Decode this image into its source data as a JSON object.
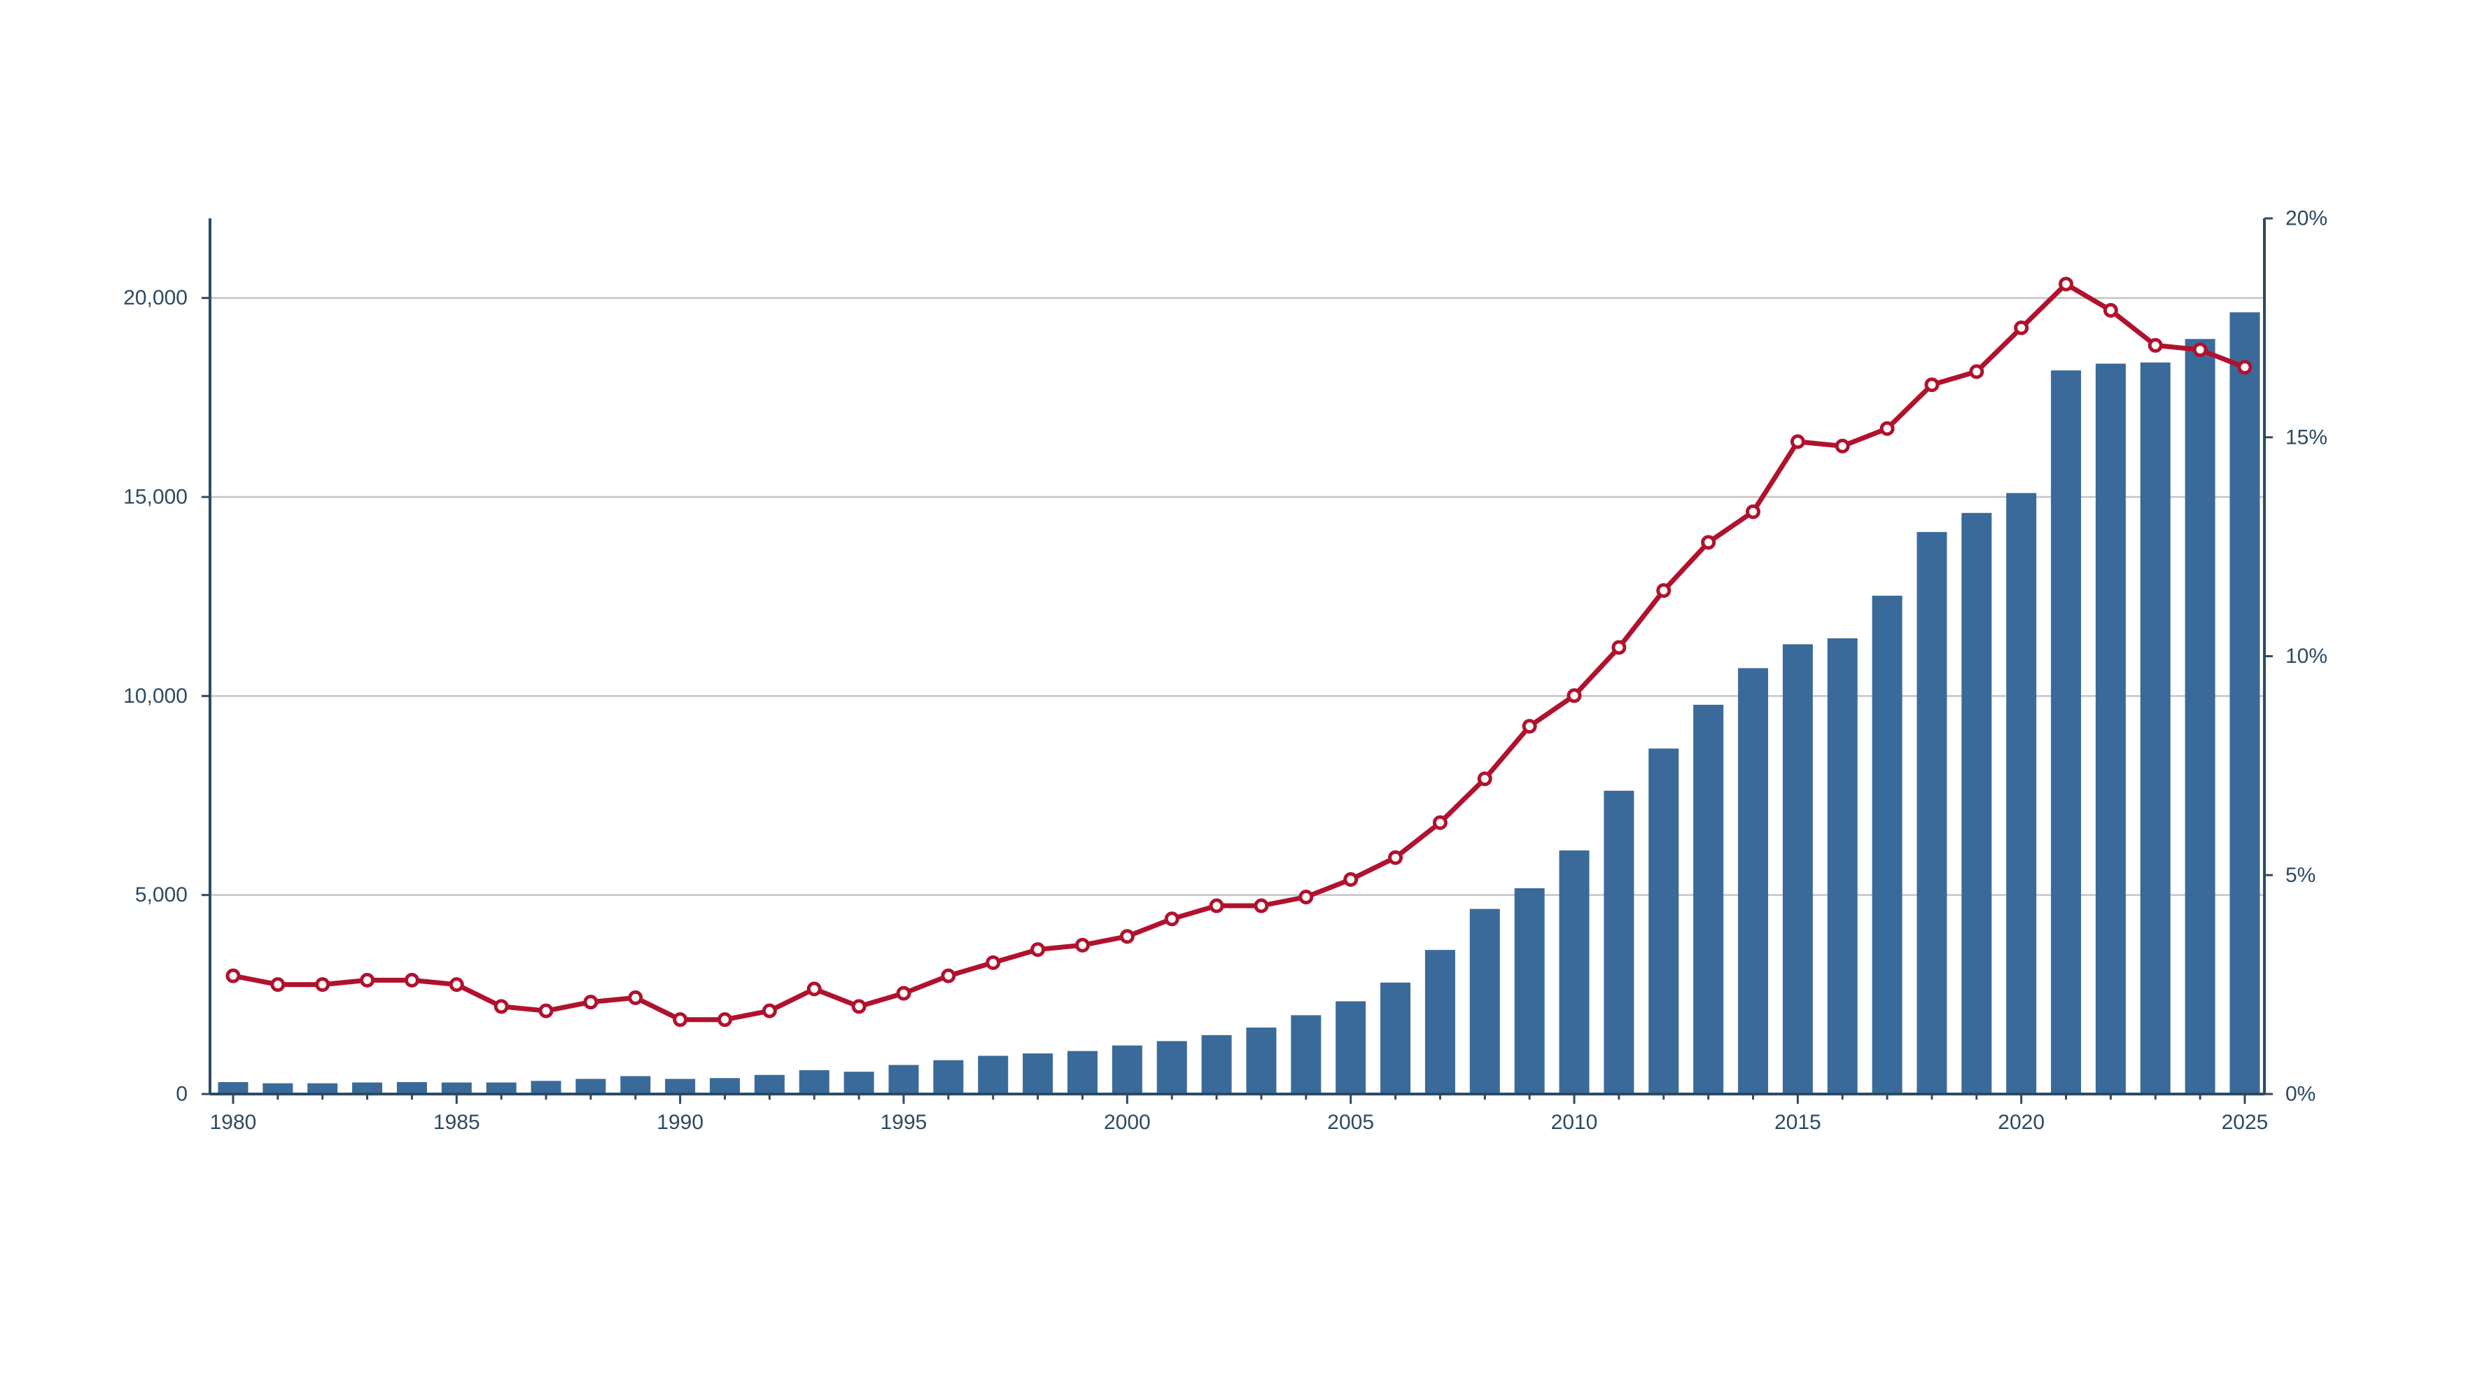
{
  "colors": {
    "bar": "#3a6a99",
    "line": "#b0122e",
    "marker_fill": "#ffffff",
    "axis": "#2d4a63",
    "grid": "#c4c4c4"
  },
  "chart_data": {
    "type": "bar",
    "x": [
      1980,
      1981,
      1982,
      1983,
      1984,
      1985,
      1986,
      1987,
      1988,
      1989,
      1990,
      1991,
      1992,
      1993,
      1994,
      1995,
      1996,
      1997,
      1998,
      1999,
      2000,
      2001,
      2002,
      2003,
      2004,
      2005,
      2006,
      2007,
      2008,
      2009,
      2010,
      2011,
      2012,
      2013,
      2014,
      2015,
      2016,
      2017,
      2018,
      2019,
      2020,
      2021,
      2022,
      2023,
      2024,
      2025
    ],
    "series": [
      {
        "type": "bar",
        "axis": "left",
        "values": [
          300,
          270,
          270,
          290,
          300,
          290,
          290,
          330,
          380,
          450,
          380,
          400,
          480,
          600,
          560,
          730,
          850,
          960,
          1020,
          1080,
          1220,
          1330,
          1480,
          1670,
          1980,
          2330,
          2800,
          3620,
          4650,
          5170,
          6120,
          7620,
          8680,
          9780,
          10700,
          11300,
          11450,
          12520,
          14120,
          14600,
          15100,
          18180,
          18350,
          18380,
          18970,
          19640
        ]
      },
      {
        "type": "line",
        "axis": "right",
        "values": [
          2.7,
          2.5,
          2.5,
          2.6,
          2.6,
          2.5,
          2.0,
          1.9,
          2.1,
          2.2,
          1.7,
          1.7,
          1.9,
          2.4,
          2.0,
          2.3,
          2.7,
          3.0,
          3.3,
          3.4,
          3.6,
          4.0,
          4.3,
          4.3,
          4.5,
          4.9,
          5.4,
          6.2,
          7.2,
          8.4,
          9.1,
          10.2,
          11.5,
          12.6,
          13.3,
          14.9,
          14.8,
          15.2,
          16.2,
          16.5,
          17.5,
          18.5,
          17.9,
          17.1,
          17.0,
          16.6
        ]
      }
    ],
    "x_ticks": [
      "1980",
      "1985",
      "1990",
      "1995",
      "2000",
      "2005",
      "2010",
      "2015",
      "2020",
      "2025"
    ],
    "y_left_ticks": [
      "0",
      "5,000",
      "10,000",
      "15,000",
      "20,000"
    ],
    "y_right_ticks": [
      "0%",
      "5%",
      "10%",
      "15%",
      "20%"
    ],
    "y_left_range": [
      0,
      22000
    ],
    "y_right_range": [
      0,
      20
    ],
    "x_range": [
      1980,
      2025
    ],
    "grid": "horizontal",
    "title": "",
    "xlabel": "",
    "ylabel": "",
    "y2label": ""
  }
}
